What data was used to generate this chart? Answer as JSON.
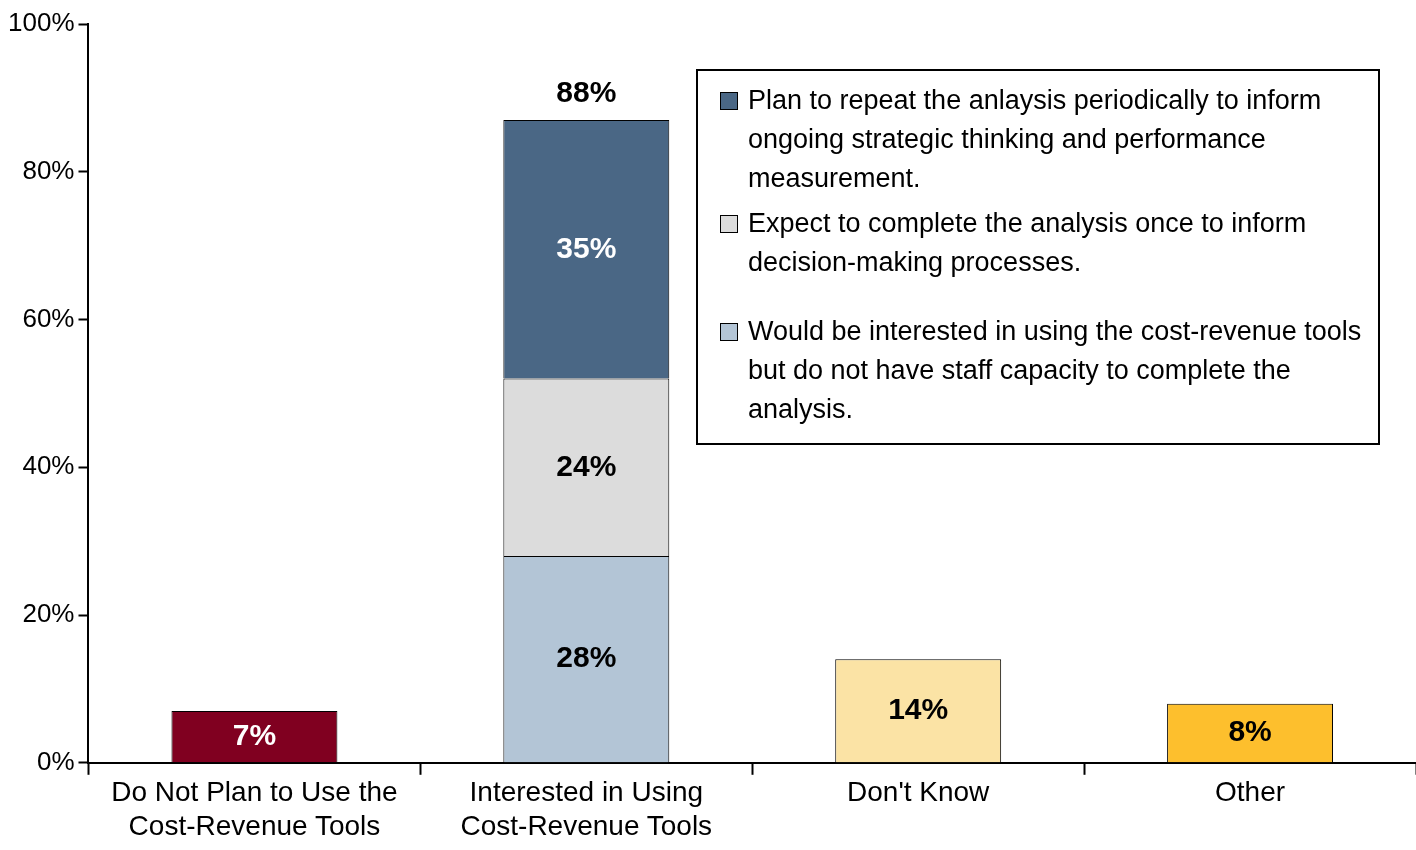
{
  "chart_data": {
    "type": "bar",
    "stacked": true,
    "categories": [
      "Do Not Plan to Use the Cost-Revenue Tools",
      "Interested in Using Cost-Revenue Tools",
      "Don't Know",
      "Other"
    ],
    "series": [
      {
        "values": [
          7,
          null,
          14,
          8
        ],
        "colors": [
          "#800020",
          "#ffffff",
          "#fbe3a5",
          "#fdbf2d"
        ],
        "value_labels": [
          "7%",
          null,
          "14%",
          "8%"
        ]
      },
      {
        "name": "Would be interested in using the cost-revenue tools but do not have staff capacity to complete the analysis.",
        "color": "#b3c5d6",
        "values": [
          null,
          28,
          null,
          null
        ],
        "value_labels": [
          null,
          "28%",
          null,
          null
        ]
      },
      {
        "name": "Expect to complete the analysis once to inform decision-making processes.",
        "color": "#dcdcdc",
        "values": [
          null,
          24,
          null,
          null
        ],
        "value_labels": [
          null,
          "24%",
          null,
          null
        ]
      },
      {
        "name": "Plan to repeat the anlaysis periodically to inform ongoing strategic thinking and performance measurement.",
        "color": "#4a6785",
        "values": [
          null,
          35,
          null,
          null
        ],
        "value_labels": [
          null,
          "35%",
          null,
          null
        ]
      }
    ],
    "totals": [
      null,
      "88%",
      null,
      null
    ],
    "ylim": [
      0,
      100
    ],
    "yticks": [
      {
        "value": 0,
        "label": "0%"
      },
      {
        "value": 20,
        "label": "20%"
      },
      {
        "value": 40,
        "label": "40%"
      },
      {
        "value": 60,
        "label": "60%"
      },
      {
        "value": 80,
        "label": "80%"
      },
      {
        "value": 100,
        "label": "100%"
      }
    ],
    "grid": false,
    "legend": "top right"
  }
}
